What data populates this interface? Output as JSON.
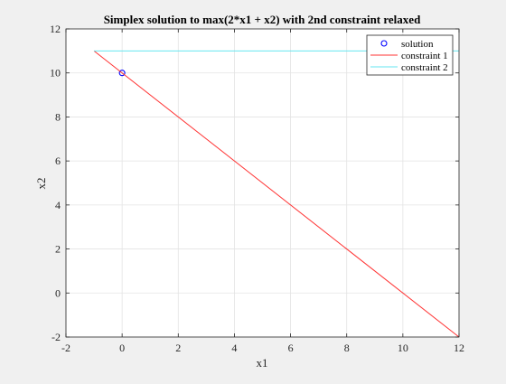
{
  "chart_data": {
    "type": "line",
    "title": "Simplex solution to max(2*x1 + x2) with 2nd constraint relaxed",
    "xlabel": "x1",
    "ylabel": "x2",
    "xlim": [
      -2,
      12
    ],
    "ylim": [
      -2,
      12
    ],
    "xticks": [
      -2,
      0,
      2,
      4,
      6,
      8,
      10,
      12
    ],
    "yticks": [
      -2,
      0,
      2,
      4,
      6,
      8,
      10,
      12
    ],
    "grid": true,
    "legend_position": "top-right",
    "series": [
      {
        "name": "solution",
        "kind": "scatter",
        "marker": "circle",
        "color": "#0000ff",
        "x": [
          0
        ],
        "y": [
          10
        ]
      },
      {
        "name": "constraint 1",
        "kind": "line",
        "color": "#ff3333",
        "x": [
          -1,
          12
        ],
        "y": [
          11,
          -2
        ]
      },
      {
        "name": "constraint 2",
        "kind": "line",
        "color": "#66e6f0",
        "x": [
          -1,
          12
        ],
        "y": [
          11,
          11
        ]
      }
    ]
  }
}
